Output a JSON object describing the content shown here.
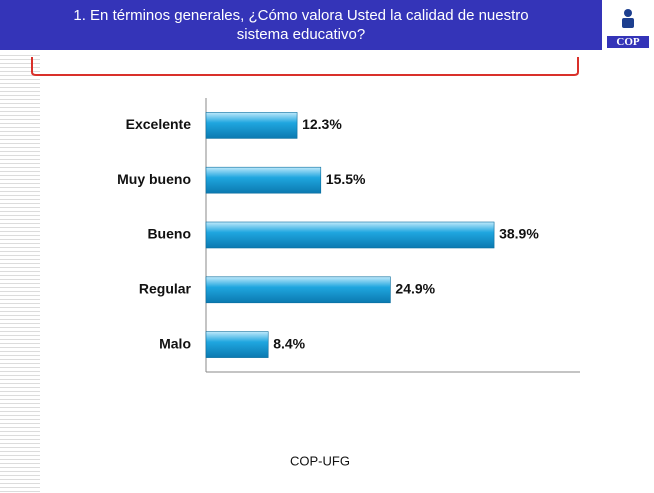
{
  "chart_data": {
    "type": "bar",
    "orientation": "horizontal",
    "title": "1. En términos generales, ¿Cómo valora Usted la calidad de nuestro sistema educativo?",
    "logo": "COP",
    "categories": [
      "Excelente",
      "Muy bueno",
      "Bueno",
      "Regular",
      "Malo"
    ],
    "values": [
      12.3,
      15.5,
      38.9,
      24.9,
      8.4
    ],
    "value_labels": [
      "12.3%",
      "15.5%",
      "38.9%",
      "24.9%",
      "8.4%"
    ],
    "color": "#1fa6df",
    "xlim": [
      0,
      50.5
    ],
    "source": "COP-UFG"
  }
}
